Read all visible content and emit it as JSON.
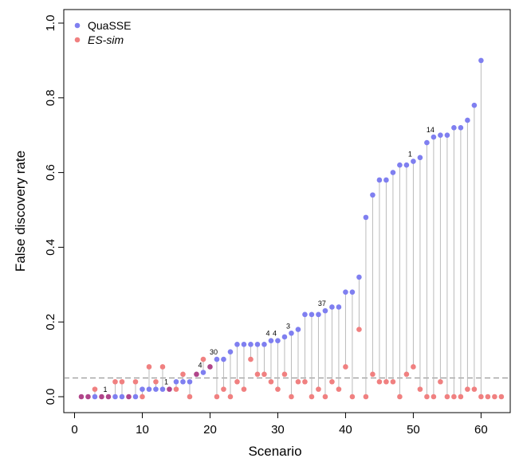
{
  "chart_data": {
    "type": "scatter",
    "xlabel": "Scenario",
    "ylabel": "False discovery rate",
    "xlim": [
      0,
      64
    ],
    "ylim": [
      0,
      1.0
    ],
    "x_ticks": [
      0,
      10,
      20,
      30,
      40,
      50,
      60
    ],
    "y_ticks": [
      0.0,
      0.2,
      0.4,
      0.6,
      0.8,
      1.0
    ],
    "y_tick_labels": [
      "0.0",
      "0.2",
      "0.4",
      "0.6",
      "0.8",
      "1.0"
    ],
    "reference_line": 0.05,
    "legend_position": "top-left",
    "colors": {
      "quasse": "#7f7ff0",
      "essim": "#f08080",
      "overlap": "#b0458a",
      "stem": "#bbbbbb",
      "refline": "#888888"
    },
    "legend": [
      {
        "name": "QuaSSE",
        "color": "#7f7ff0",
        "italic": false
      },
      {
        "name": "ES-sim",
        "color": "#f08080",
        "italic": true
      }
    ],
    "x": [
      1,
      2,
      3,
      4,
      5,
      6,
      7,
      8,
      9,
      10,
      11,
      12,
      13,
      14,
      15,
      16,
      17,
      18,
      19,
      20,
      21,
      22,
      23,
      24,
      25,
      26,
      27,
      28,
      29,
      30,
      31,
      32,
      33,
      34,
      35,
      36,
      37,
      38,
      39,
      40,
      41,
      42,
      43,
      44,
      45,
      46,
      47,
      48,
      49,
      50,
      51,
      52,
      53,
      54,
      55,
      56,
      57,
      58,
      59,
      60,
      61,
      62,
      63
    ],
    "series": [
      {
        "name": "QuaSSE",
        "values": [
          0.0,
          0.0,
          0.0,
          0.0,
          0.0,
          0.0,
          0.0,
          0.0,
          0.0,
          0.02,
          0.02,
          0.02,
          0.02,
          0.02,
          0.04,
          0.04,
          0.04,
          0.06,
          0.065,
          0.08,
          0.1,
          0.1,
          0.12,
          0.14,
          0.14,
          0.14,
          0.14,
          0.14,
          0.15,
          0.15,
          0.16,
          0.17,
          0.18,
          0.22,
          0.22,
          0.22,
          0.23,
          0.24,
          0.24,
          0.28,
          0.28,
          0.32,
          0.48,
          0.54,
          0.58,
          0.58,
          0.6,
          0.62,
          0.62,
          0.63,
          0.64,
          0.68,
          0.695,
          0.7,
          0.7,
          0.72,
          0.72,
          0.74,
          0.78,
          0.9,
          null,
          null,
          null
        ]
      },
      {
        "name": "ES-sim",
        "values": [
          0.0,
          0.0,
          0.02,
          0.0,
          0.0,
          0.04,
          0.04,
          0.0,
          0.04,
          0.0,
          0.08,
          0.04,
          0.08,
          0.02,
          0.02,
          0.06,
          0.0,
          0.06,
          0.1,
          0.08,
          0.0,
          0.02,
          0.0,
          0.04,
          0.02,
          0.1,
          0.06,
          0.06,
          0.04,
          0.02,
          0.06,
          0.0,
          0.04,
          0.04,
          0.0,
          0.02,
          0.0,
          0.04,
          0.02,
          0.08,
          0.0,
          0.18,
          0.0,
          0.06,
          0.04,
          0.04,
          0.04,
          0.0,
          0.06,
          0.08,
          0.02,
          0.0,
          0.0,
          0.04,
          0.0,
          0.0,
          0.0,
          0.02,
          0.02,
          0.0,
          0.0,
          0.0,
          0.0
        ]
      }
    ],
    "annotations": [
      {
        "x": 5,
        "y": 0.0,
        "text": "1"
      },
      {
        "x": 14,
        "y": 0.02,
        "text": "1"
      },
      {
        "x": 19,
        "y": 0.065,
        "text": "4"
      },
      {
        "x": 21,
        "y": 0.1,
        "text": "30"
      },
      {
        "x": 29,
        "y": 0.15,
        "text": "4"
      },
      {
        "x": 30,
        "y": 0.15,
        "text": "4"
      },
      {
        "x": 32,
        "y": 0.17,
        "text": "3"
      },
      {
        "x": 37,
        "y": 0.23,
        "text": "37"
      },
      {
        "x": 50,
        "y": 0.63,
        "text": "1"
      },
      {
        "x": 53,
        "y": 0.695,
        "text": "14"
      }
    ]
  }
}
